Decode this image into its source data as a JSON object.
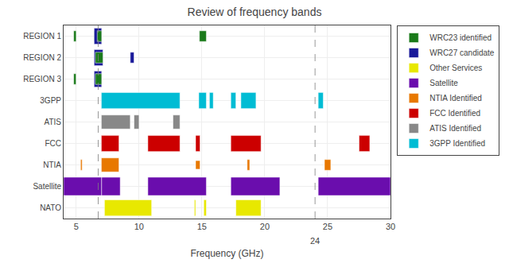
{
  "chart_data": {
    "type": "range",
    "orientation": "horizontal",
    "title": "Review of frequency bands",
    "xlabel": "Frequency (GHz)",
    "xlim": [
      4,
      30
    ],
    "xticks": [
      5,
      10,
      15,
      20,
      25,
      30
    ],
    "categories": [
      "REGION 1",
      "REGION 2",
      "REGION 3",
      "3GPP",
      "ATIS",
      "FCC",
      "NTIA",
      "Satellite",
      "NATO"
    ],
    "series": [
      {
        "name": "WRC23 identified",
        "color": "#1a7a1a"
      },
      {
        "name": "WRC27 candidate",
        "color": "#1a1a9a"
      },
      {
        "name": "Other Services",
        "color": "#e8e800"
      },
      {
        "name": "Satellite",
        "color": "#6a0dad"
      },
      {
        "name": "NTIA Identified",
        "color": "#e87800"
      },
      {
        "name": "FCC Identified",
        "color": "#cc0000"
      },
      {
        "name": "ATIS Identified",
        "color": "#888888"
      },
      {
        "name": "3GPP Identified",
        "color": "#00bcd4"
      }
    ],
    "bars": [
      {
        "category": "REGION 1",
        "series": "WRC23 identified",
        "start": 4.8,
        "end": 5.0,
        "height": 0.5
      },
      {
        "category": "REGION 1",
        "series": "WRC23 identified",
        "start": 6.425,
        "end": 6.55,
        "height": 0.5
      },
      {
        "category": "REGION 1",
        "series": "WRC27 candidate",
        "start": 6.425,
        "end": 7.025,
        "height": 0.75
      },
      {
        "category": "REGION 1",
        "series": "WRC23 identified",
        "start": 6.675,
        "end": 7.025,
        "height": 0.5
      },
      {
        "category": "REGION 1",
        "series": "WRC23 identified",
        "start": 14.8,
        "end": 15.35,
        "height": 0.5
      },
      {
        "category": "REGION 2",
        "series": "WRC27 candidate",
        "start": 6.425,
        "end": 7.125,
        "height": 0.75
      },
      {
        "category": "REGION 2",
        "series": "WRC23 identified",
        "start": 6.525,
        "end": 7.125,
        "height": 0.5
      },
      {
        "category": "REGION 2",
        "series": "WRC27 candidate",
        "start": 9.3,
        "end": 9.6,
        "height": 0.5
      },
      {
        "category": "REGION 3",
        "series": "WRC23 identified",
        "start": 4.8,
        "end": 4.99,
        "height": 0.5
      },
      {
        "category": "REGION 3",
        "series": "WRC27 candidate",
        "start": 6.425,
        "end": 7.025,
        "height": 0.75
      },
      {
        "category": "REGION 3",
        "series": "WRC23 identified",
        "start": 6.525,
        "end": 7.025,
        "height": 0.5
      },
      {
        "category": "3GPP",
        "series": "3GPP Identified",
        "start": 7.0,
        "end": 13.25,
        "height": 0.75
      },
      {
        "category": "3GPP",
        "series": "3GPP Identified",
        "start": 14.75,
        "end": 15.35,
        "height": 0.75
      },
      {
        "category": "3GPP",
        "series": "3GPP Identified",
        "start": 15.6,
        "end": 15.9,
        "height": 0.75
      },
      {
        "category": "3GPP",
        "series": "3GPP Identified",
        "start": 17.3,
        "end": 17.7,
        "height": 0.75
      },
      {
        "category": "3GPP",
        "series": "3GPP Identified",
        "start": 18.1,
        "end": 19.3,
        "height": 0.75
      },
      {
        "category": "3GPP",
        "series": "3GPP Identified",
        "start": 24.25,
        "end": 24.65,
        "height": 0.75
      },
      {
        "category": "ATIS",
        "series": "ATIS Identified",
        "start": 7.0,
        "end": 9.3,
        "height": 0.65
      },
      {
        "category": "ATIS",
        "series": "ATIS Identified",
        "start": 9.6,
        "end": 10.0,
        "height": 0.65
      },
      {
        "category": "ATIS",
        "series": "ATIS Identified",
        "start": 12.7,
        "end": 13.25,
        "height": 0.65
      },
      {
        "category": "FCC",
        "series": "FCC Identified",
        "start": 7.0,
        "end": 8.4,
        "height": 0.75
      },
      {
        "category": "FCC",
        "series": "FCC Identified",
        "start": 10.7,
        "end": 13.25,
        "height": 0.75
      },
      {
        "category": "FCC",
        "series": "FCC Identified",
        "start": 14.5,
        "end": 14.85,
        "height": 0.75
      },
      {
        "category": "FCC",
        "series": "FCC Identified",
        "start": 17.3,
        "end": 19.7,
        "height": 0.75
      },
      {
        "category": "FCC",
        "series": "FCC Identified",
        "start": 27.5,
        "end": 28.35,
        "height": 0.75
      },
      {
        "category": "NTIA",
        "series": "NTIA Identified",
        "start": 5.35,
        "end": 5.47,
        "height": 0.5
      },
      {
        "category": "NTIA",
        "series": "NTIA Identified",
        "start": 7.0,
        "end": 8.4,
        "height": 0.65
      },
      {
        "category": "NTIA",
        "series": "NTIA Identified",
        "start": 14.5,
        "end": 14.85,
        "height": 0.4
      },
      {
        "category": "NTIA",
        "series": "NTIA Identified",
        "start": 18.6,
        "end": 18.8,
        "height": 0.5
      },
      {
        "category": "NTIA",
        "series": "NTIA Identified",
        "start": 24.75,
        "end": 25.25,
        "height": 0.5
      },
      {
        "category": "Satellite",
        "series": "Satellite",
        "start": 4.0,
        "end": 7.025,
        "height": 0.85
      },
      {
        "category": "Satellite",
        "series": "Satellite",
        "start": 7.025,
        "end": 8.5,
        "height": 0.85
      },
      {
        "category": "Satellite",
        "series": "Satellite",
        "start": 10.7,
        "end": 15.35,
        "height": 0.85
      },
      {
        "category": "Satellite",
        "series": "Satellite",
        "start": 17.3,
        "end": 21.2,
        "height": 0.85
      },
      {
        "category": "Satellite",
        "series": "Satellite",
        "start": 24.25,
        "end": 30.0,
        "height": 0.85
      },
      {
        "category": "NATO",
        "series": "Other Services",
        "start": 7.25,
        "end": 11.0,
        "height": 0.75
      },
      {
        "category": "NATO",
        "series": "Other Services",
        "start": 14.4,
        "end": 14.5,
        "height": 0.75
      },
      {
        "category": "NATO",
        "series": "Other Services",
        "start": 15.15,
        "end": 15.35,
        "height": 0.75
      },
      {
        "category": "NATO",
        "series": "Other Services",
        "start": 17.7,
        "end": 19.7,
        "height": 0.75
      }
    ],
    "vlines": [
      6.75,
      24
    ],
    "annotations": [
      {
        "x": 24,
        "text": "24"
      }
    ],
    "grid": true,
    "legend": "upper right"
  }
}
